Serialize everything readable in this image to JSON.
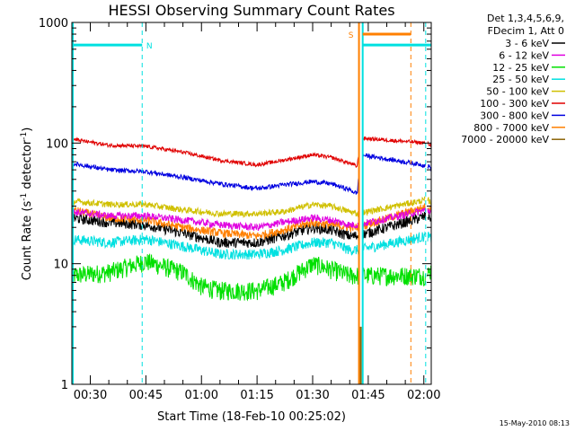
{
  "chart_data": {
    "type": "line",
    "title": "HESSI Observing Summary Count Rates",
    "xlabel": "Start Time (18-Feb-10 00:25:02)",
    "ylabel_parts": [
      "Count Rate (s",
      "-1",
      " detector",
      "-1",
      ")"
    ],
    "y_scale": "log",
    "ylim": [
      1,
      1000
    ],
    "y_ticks": [
      {
        "value": 1,
        "label": "1"
      },
      {
        "value": 10,
        "label": "10"
      },
      {
        "value": 100,
        "label": "100"
      },
      {
        "value": 1000,
        "label": "1000"
      }
    ],
    "xlim": [
      "00:25:02",
      "02:02:00"
    ],
    "x_ticks": [
      {
        "value": "00:30",
        "label": "00:30"
      },
      {
        "value": "00:45",
        "label": "00:45"
      },
      {
        "value": "01:00",
        "label": "01:00"
      },
      {
        "value": "01:15",
        "label": "01:15"
      },
      {
        "value": "01:30",
        "label": "01:30"
      },
      {
        "value": "01:45",
        "label": "01:45"
      },
      {
        "value": "02:00",
        "label": "02:00"
      }
    ],
    "legend_header": [
      "Det 1,3,4,5,6,9,",
      "FDecim 1, Att 0"
    ],
    "legend_position": "right-outside",
    "gap": [
      "01:42:30",
      "01:43:30",
      "02:00:30",
      "02:01:00"
    ],
    "series": [
      {
        "name": "3 - 6 keV",
        "color": "#000000",
        "noise": 0.05,
        "x": [
          "00:25",
          "00:35",
          "00:45",
          "00:55",
          "01:05",
          "01:15",
          "01:22",
          "01:30",
          "01:35",
          "01:40",
          "01:42",
          "02:01",
          "02:02"
        ],
        "y": [
          24,
          22,
          21,
          18,
          15,
          15,
          17,
          20,
          19,
          17,
          17,
          25,
          24
        ]
      },
      {
        "name": "6 - 12 keV",
        "color": "#e000e0",
        "noise": 0.035,
        "x": [
          "00:25",
          "00:35",
          "00:45",
          "00:55",
          "01:05",
          "01:15",
          "01:22",
          "01:30",
          "01:35",
          "01:40",
          "01:42",
          "02:01",
          "02:02"
        ],
        "y": [
          27,
          25,
          25,
          23,
          21,
          20,
          22,
          24,
          23,
          21,
          21,
          28,
          27
        ]
      },
      {
        "name": "12 - 25 keV",
        "color": "#00e000",
        "noise": 0.09,
        "x": [
          "00:25",
          "00:35",
          "00:45",
          "00:55",
          "01:00",
          "01:05",
          "01:15",
          "01:22",
          "01:30",
          "01:35",
          "01:40",
          "01:42",
          "02:01",
          "02:02"
        ],
        "y": [
          8,
          8.5,
          10.5,
          8.5,
          6.5,
          6,
          6,
          7,
          10,
          9,
          8,
          8,
          8,
          9
        ]
      },
      {
        "name": "25 - 50 keV",
        "color": "#00e0e0",
        "noise": 0.05,
        "x": [
          "00:25",
          "00:35",
          "00:45",
          "00:55",
          "01:05",
          "01:15",
          "01:22",
          "01:30",
          "01:35",
          "01:40",
          "01:42",
          "02:01",
          "02:02"
        ],
        "y": [
          16,
          15,
          16,
          14,
          12,
          12,
          13,
          15,
          15,
          13,
          13,
          17,
          16
        ]
      },
      {
        "name": "50 - 100 keV",
        "color": "#d0c000",
        "noise": 0.03,
        "x": [
          "00:25",
          "00:35",
          "00:45",
          "00:55",
          "01:05",
          "01:15",
          "01:22",
          "01:30",
          "01:35",
          "01:40",
          "01:42",
          "02:01",
          "02:02"
        ],
        "y": [
          33,
          31,
          31,
          28,
          26,
          26,
          27,
          31,
          30,
          27,
          26,
          34,
          32
        ]
      },
      {
        "name": "100 - 300 keV",
        "color": "#e00000",
        "noise": 0.018,
        "x": [
          "00:25",
          "00:35",
          "00:45",
          "00:55",
          "01:05",
          "01:15",
          "01:22",
          "01:30",
          "01:35",
          "01:40",
          "01:42",
          "01:43",
          "02:01",
          "02:02"
        ],
        "y": [
          108,
          96,
          94,
          84,
          72,
          66,
          72,
          80,
          76,
          68,
          64,
          110,
          100,
          95
        ]
      },
      {
        "name": "300 - 800 keV",
        "color": "#0000e0",
        "noise": 0.022,
        "x": [
          "00:25",
          "00:35",
          "00:45",
          "00:55",
          "01:05",
          "01:15",
          "01:22",
          "01:30",
          "01:35",
          "01:40",
          "01:42",
          "01:43",
          "02:01",
          "02:02"
        ],
        "y": [
          68,
          60,
          58,
          52,
          46,
          42,
          45,
          48,
          46,
          41,
          38,
          80,
          65,
          62
        ]
      },
      {
        "name": "800 - 7000 keV",
        "color": "#ff7f00",
        "noise": 0.04,
        "x": [
          "00:25",
          "00:35",
          "00:45",
          "00:55",
          "01:05",
          "01:15",
          "01:22",
          "01:30",
          "01:35",
          "01:40",
          "01:42",
          "02:01",
          "02:02"
        ],
        "y": [
          28,
          24,
          23,
          20,
          18,
          17,
          19,
          22,
          21,
          20,
          20,
          30,
          28
        ]
      },
      {
        "name": "7000 - 20000 keV",
        "color": "#8b6508",
        "noise": 0.0,
        "x": [],
        "y": []
      }
    ],
    "flags": [
      {
        "label": "N",
        "color": "#00e0e0",
        "y": 650,
        "x_start": "00:25:02",
        "x_end": "00:44:00",
        "x_start2": "01:43:30",
        "x_end2": "02:02:00",
        "marker_x": "00:44:00"
      },
      {
        "label": "S",
        "color": "#ff7f00",
        "y": 800,
        "x_start": "01:43:30",
        "x_end": "01:56:30",
        "marker_x": "01:42:00"
      }
    ],
    "dashed_lines": [
      {
        "x": "00:44:00",
        "color": "#00e0e0"
      },
      {
        "x": "01:56:30",
        "color": "#ff7f00"
      },
      {
        "x": "02:00:30",
        "color": "#00e0e0"
      }
    ]
  },
  "footer": {
    "timestamp": "15-May-2010 08:13"
  }
}
